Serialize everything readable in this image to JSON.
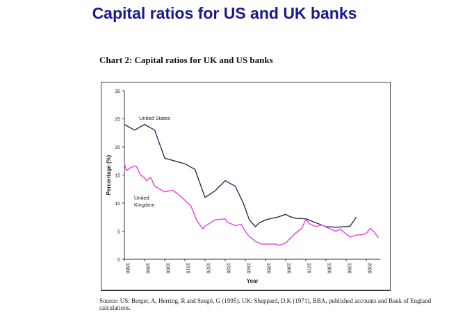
{
  "slide_title": "Capital ratios for US and UK banks",
  "source_note": "Source:  US: Berger, A, Herring, R and Szegö, G (1995).  UK: Sheppard, D.K (1971), BBA, published accounts and Bank  of England calculations.",
  "chart_data": {
    "type": "line",
    "title": "Chart 2: Capital ratios for UK and US banks",
    "xlabel": "Year",
    "ylabel": "Percentage (%)",
    "xlim": [
      1880,
      2007
    ],
    "ylim": [
      0,
      30
    ],
    "xticks": [
      1880,
      1890,
      1900,
      1910,
      1920,
      1930,
      1940,
      1950,
      1960,
      1970,
      1980,
      1990,
      2000
    ],
    "yticks": [
      0,
      5,
      10,
      15,
      20,
      25,
      30
    ],
    "grid": false,
    "legend": "inline labels",
    "series": [
      {
        "name": "United States",
        "color": "#2a2a5a",
        "x": [
          1880,
          1885,
          1890,
          1895,
          1900,
          1910,
          1915,
          1920,
          1925,
          1930,
          1935,
          1939,
          1942,
          1945,
          1947,
          1950,
          1953,
          1956,
          1960,
          1962,
          1965,
          1970,
          1975,
          1980,
          1985,
          1990,
          1992,
          1995
        ],
        "y": [
          24,
          23,
          24,
          23,
          18,
          17,
          16,
          11,
          12.2,
          14,
          13,
          10,
          7,
          5.8,
          6.5,
          7,
          7.3,
          7.5,
          8,
          7.6,
          7.3,
          7.2,
          6.5,
          5.8,
          5.7,
          5.8,
          5.9,
          7.5
        ]
      },
      {
        "name": "United Kingdom",
        "color": "#e040e0",
        "x": [
          1880,
          1881,
          1883,
          1885,
          1886,
          1888,
          1890,
          1891,
          1893,
          1895,
          1900,
          1904,
          1908,
          1910,
          1913,
          1916,
          1919,
          1920,
          1925,
          1930,
          1931,
          1935,
          1938,
          1941,
          1945,
          1948,
          1955,
          1957,
          1960,
          1963,
          1965,
          1968,
          1970,
          1972,
          1975,
          1978,
          1982,
          1985,
          1987,
          1990,
          1992,
          1995,
          1998,
          2000,
          2002,
          2004,
          2006
        ],
        "y": [
          17,
          15.8,
          16.3,
          16.6,
          16.5,
          15,
          14.5,
          14,
          14.6,
          13,
          12,
          12.3,
          11.2,
          10.5,
          9.5,
          6.8,
          5.4,
          5.9,
          7,
          7.2,
          6.6,
          6,
          6.2,
          4.4,
          3.2,
          2.7,
          2.7,
          2.5,
          2.9,
          4,
          4.7,
          5.5,
          7.1,
          6.3,
          5.8,
          6.1,
          5.4,
          5,
          5.4,
          4.5,
          4,
          4.3,
          4.4,
          4.6,
          5.5,
          4.8,
          3.8
        ]
      }
    ],
    "annotations": [
      "United States",
      "United\nKingdom"
    ]
  }
}
